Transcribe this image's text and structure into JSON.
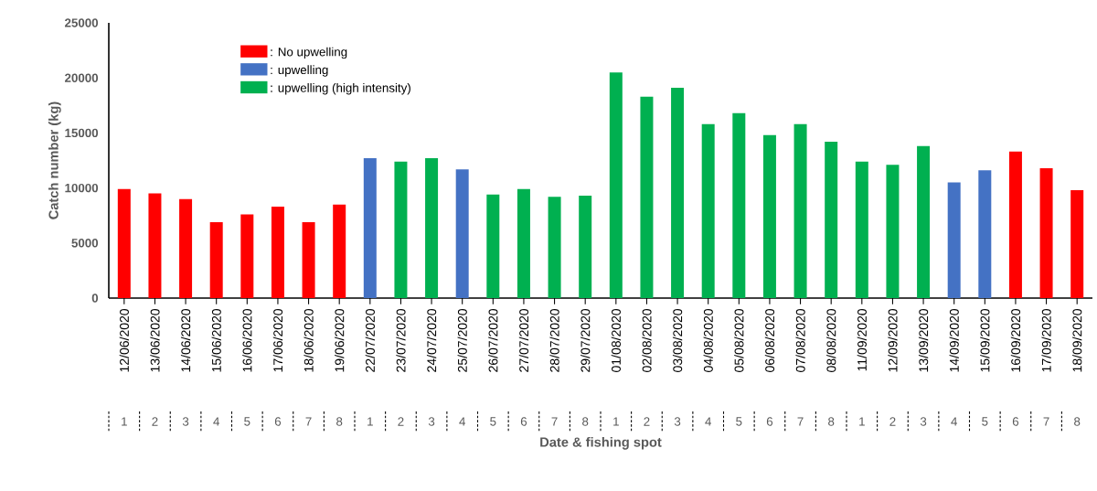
{
  "chart_data": {
    "type": "bar",
    "xlabel": "Date & fishing spot",
    "ylabel": "Catch number (kg)",
    "categories": [
      "12/06/2020",
      "13/06/2020",
      "14/06/2020",
      "15/06/2020",
      "16/06/2020",
      "17/06/2020",
      "18/06/2020",
      "19/06/2020",
      "22/07/2020",
      "23/07/2020",
      "24/07/2020",
      "25/07/2020",
      "26/07/2020",
      "27/07/2020",
      "28/07/2020",
      "29/07/2020",
      "01/08/2020",
      "02/08/2020",
      "03/08/2020",
      "04/08/2020",
      "05/08/2020",
      "06/08/2020",
      "07/08/2020",
      "08/08/2020",
      "11/09/2020",
      "12/09/2020",
      "13/09/2020",
      "14/09/2020",
      "15/09/2020",
      "16/09/2020",
      "17/09/2020",
      "18/09/2020"
    ],
    "series": [
      {
        "name": ": No upwelling",
        "color": "#ff0000",
        "values": [
          9900,
          9500,
          9000,
          6900,
          7600,
          8300,
          6900,
          8500,
          null,
          null,
          null,
          null,
          null,
          null,
          null,
          null,
          null,
          null,
          null,
          null,
          null,
          null,
          null,
          null,
          null,
          null,
          null,
          null,
          null,
          13300,
          11800,
          9800
        ]
      },
      {
        "name": ": upwelling",
        "color": "#4472c4",
        "values": [
          null,
          null,
          null,
          null,
          null,
          null,
          null,
          null,
          12700,
          null,
          null,
          11700,
          null,
          null,
          null,
          null,
          null,
          null,
          null,
          null,
          null,
          null,
          null,
          null,
          null,
          null,
          null,
          10500,
          11600,
          null,
          null,
          null
        ]
      },
      {
        "name": ": upwelling (high intensity)",
        "color": "#00b050",
        "values": [
          null,
          null,
          null,
          null,
          null,
          null,
          null,
          null,
          null,
          12400,
          12700,
          null,
          9400,
          9900,
          9200,
          9300,
          20500,
          18300,
          19100,
          15800,
          16800,
          14800,
          15800,
          14200,
          12400,
          12100,
          13800,
          null,
          null,
          null,
          null,
          null
        ]
      }
    ],
    "ylim": [
      0,
      25000
    ],
    "yticks": [
      0,
      5000,
      10000,
      15000,
      20000,
      25000
    ],
    "legend": "top left",
    "annotations": [
      "1",
      "2",
      "3",
      "4",
      "5",
      "6",
      "7",
      "8",
      "1",
      "2",
      "3",
      "4",
      "5",
      "6",
      "7",
      "8",
      "1",
      "2",
      "3",
      "4",
      "5",
      "6",
      "7",
      "8",
      "1",
      "2",
      "3",
      "4",
      "5",
      "6",
      "7",
      "8"
    ]
  }
}
